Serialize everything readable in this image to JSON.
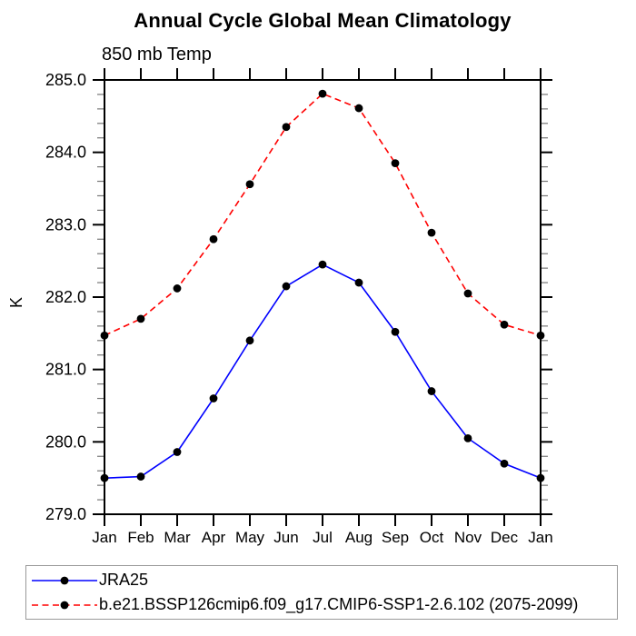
{
  "title": "Annual Cycle Global Mean Climatology",
  "subtitle": "850 mb Temp",
  "legend": {
    "items": [
      {
        "label": "JRA25",
        "color": "#0000ff",
        "style": "solid",
        "marker_color": "#000000"
      },
      {
        "label": "b.e21.BSSP126cmip6.f09_g17.CMIP6-SSP1-2.6.102 (2075-2099)",
        "color": "#ff0000",
        "style": "dashed",
        "marker_color": "#000000"
      }
    ]
  },
  "chart_data": {
    "type": "line",
    "title": "Annual Cycle Global Mean Climatology",
    "subtitle": "850 mb Temp",
    "ylabel": "K",
    "x": [
      "Jan",
      "Feb",
      "Mar",
      "Apr",
      "May",
      "Jun",
      "Jul",
      "Aug",
      "Sep",
      "Oct",
      "Nov",
      "Dec",
      "Jan"
    ],
    "ylim": [
      279.0,
      285.0
    ],
    "ytick_major": 1.0,
    "ytick_minor": 0.2,
    "ytick_label_format": "one-decimal",
    "grid": false,
    "legend_position": "bottom-left-box",
    "axis_color": "#000000",
    "series": [
      {
        "name": "JRA25",
        "color": "#0000ff",
        "line_style": "solid",
        "marker": "filled-circle",
        "marker_color": "#000000",
        "values": [
          279.5,
          279.52,
          279.86,
          280.6,
          281.4,
          282.15,
          282.45,
          282.2,
          281.52,
          280.7,
          280.05,
          279.7,
          279.5
        ]
      },
      {
        "name": "b.e21.BSSP126cmip6.f09_g17.CMIP6-SSP1-2.6.102 (2075-2099)",
        "color": "#ff0000",
        "line_style": "dashed",
        "marker": "filled-circle",
        "marker_color": "#000000",
        "values": [
          281.47,
          281.7,
          282.12,
          282.8,
          283.56,
          284.35,
          284.81,
          284.61,
          283.85,
          282.89,
          282.05,
          281.62,
          281.47
        ]
      }
    ]
  }
}
